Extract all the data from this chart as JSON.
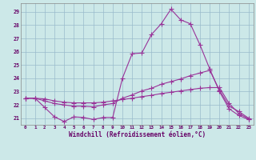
{
  "xlabel": "Windchill (Refroidissement éolien,°C)",
  "background_color": "#cce8e8",
  "line_color": "#993399",
  "grid_color": "#99bbcc",
  "x": [
    0,
    1,
    2,
    3,
    4,
    5,
    6,
    7,
    8,
    9,
    10,
    11,
    12,
    13,
    14,
    15,
    16,
    17,
    18,
    19,
    20,
    21,
    22,
    23
  ],
  "line1_y": [
    22.5,
    22.5,
    21.8,
    21.1,
    20.75,
    21.1,
    21.05,
    20.9,
    21.05,
    21.05,
    24.0,
    25.85,
    25.9,
    27.3,
    28.1,
    29.2,
    28.4,
    28.1,
    26.5,
    24.7,
    23.0,
    21.7,
    21.2,
    20.9
  ],
  "line2_y": [
    22.5,
    22.5,
    22.3,
    22.1,
    22.0,
    21.9,
    21.9,
    21.85,
    22.0,
    22.1,
    22.5,
    22.75,
    23.05,
    23.25,
    23.55,
    23.75,
    23.95,
    24.2,
    24.4,
    24.6,
    23.1,
    21.9,
    21.5,
    21.0
  ],
  "line3_y": [
    22.5,
    22.5,
    22.45,
    22.3,
    22.2,
    22.15,
    22.15,
    22.15,
    22.2,
    22.3,
    22.4,
    22.5,
    22.62,
    22.72,
    22.85,
    22.95,
    23.05,
    23.15,
    23.25,
    23.3,
    23.3,
    22.1,
    21.35,
    20.95
  ],
  "yticks": [
    21,
    22,
    23,
    24,
    25,
    26,
    27,
    28,
    29
  ],
  "xtick_labels": [
    "0",
    "1",
    "2",
    "3",
    "4",
    "5",
    "6",
    "7",
    "8",
    "9",
    "10",
    "11",
    "12",
    "13",
    "14",
    "15",
    "16",
    "17",
    "18",
    "19",
    "20",
    "21",
    "22",
    "23"
  ]
}
